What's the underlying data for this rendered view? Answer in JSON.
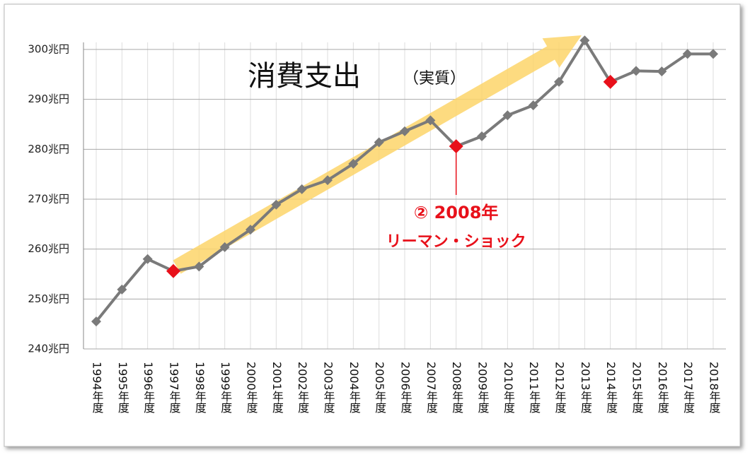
{
  "chart_data": {
    "type": "line",
    "title": "消費支出",
    "subtitle": "（実質）",
    "annotation": {
      "line1": "② 2008年",
      "line2": "リーマン・ショック",
      "color": "#e8101a"
    },
    "categories": [
      "1994年度",
      "1995年度",
      "1996年度",
      "1997年度",
      "1998年度",
      "1999年度",
      "2000年度",
      "2001年度",
      "2002年度",
      "2003年度",
      "2004年度",
      "2005年度",
      "2006年度",
      "2007年度",
      "2008年度",
      "2009年度",
      "2010年度",
      "2011年度",
      "2012年度",
      "2013年度",
      "2014年度",
      "2015年度",
      "2016年度",
      "2017年度",
      "2018年度"
    ],
    "series": [
      {
        "color": "#7a7a7a",
        "values": [
          245.5,
          251.9,
          258.0,
          255.6,
          256.5,
          260.4,
          263.9,
          268.9,
          272.0,
          273.8,
          277.1,
          281.4,
          283.6,
          285.8,
          280.6,
          282.6,
          286.8,
          288.8,
          293.5,
          301.8,
          293.5,
          295.7,
          295.6,
          299.1,
          299.1
        ]
      }
    ],
    "highlighted": [
      3,
      14,
      20
    ],
    "highlight_color": "#e8101a",
    "ylim": [
      240,
      300
    ],
    "yticks": [
      {
        "value": 240,
        "label": "240兆円"
      },
      {
        "value": 250,
        "label": "250兆円"
      },
      {
        "value": 260,
        "label": "260兆円"
      },
      {
        "value": 270,
        "label": "270兆円"
      },
      {
        "value": 280,
        "label": "280兆円"
      },
      {
        "value": 290,
        "label": "290兆円"
      },
      {
        "value": 300,
        "label": "300兆円"
      }
    ],
    "grid": true
  }
}
